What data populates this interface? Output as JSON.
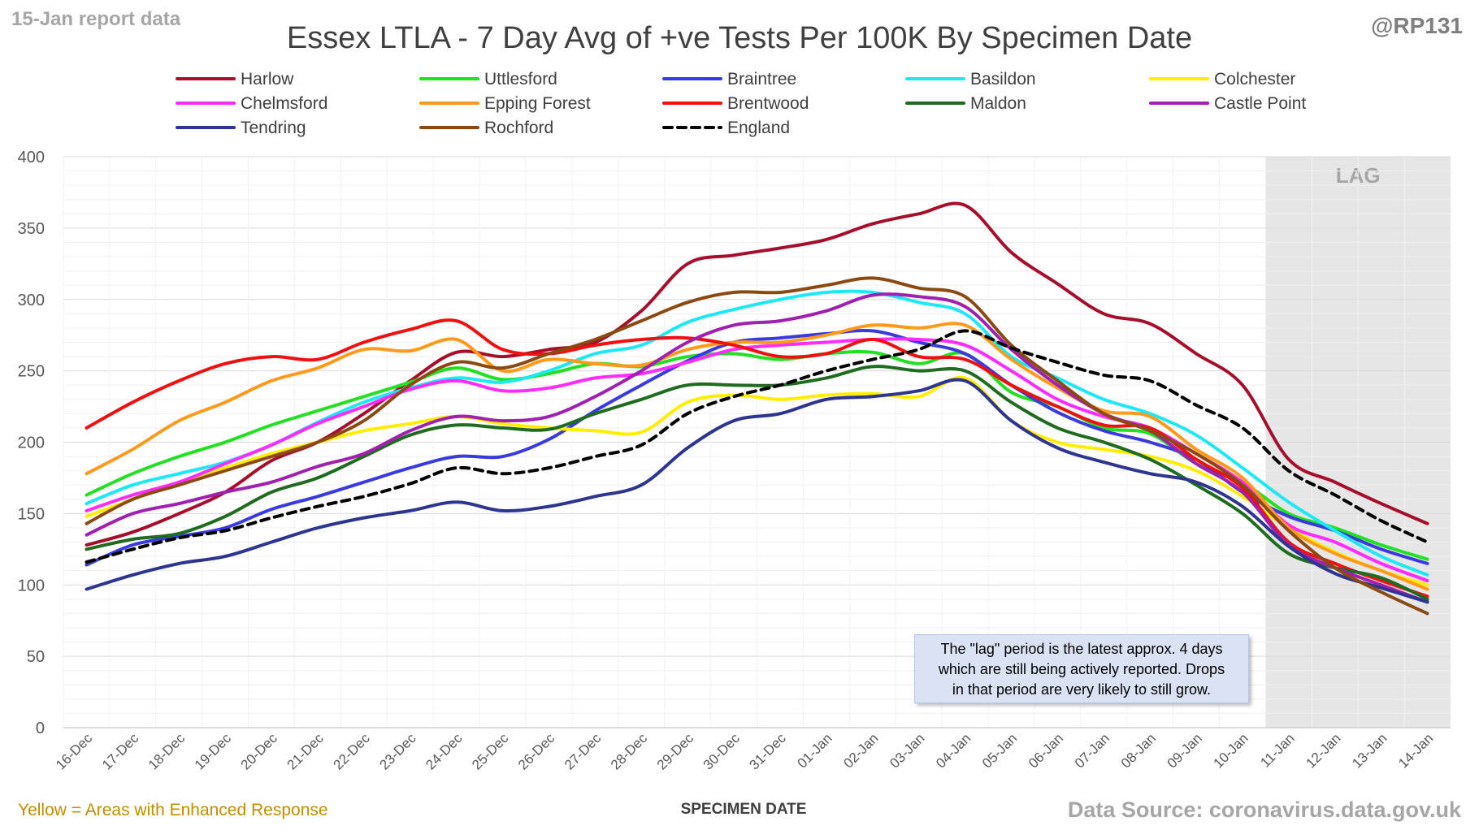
{
  "header": {
    "report_label": "15-Jan report data",
    "handle": "@RP131",
    "title": "Essex LTLA - 7 Day Avg of +ve Tests Per 100K By Specimen Date"
  },
  "footer": {
    "enhanced_note": "Yellow = Areas with Enhanced Response",
    "source": "Data Source: coronavirus.data.gov.uk"
  },
  "annotation": {
    "lines": [
      "The \"lag\" period is the latest approx. 4 days",
      "which are still being actively reported.  Drops",
      "in that period are very likely to still grow."
    ]
  },
  "chart_data": {
    "type": "line",
    "title": "Essex LTLA - 7 Day Avg of +ve Tests Per 100K By Specimen Date",
    "xlabel": "SPECIMEN DATE",
    "ylabel": "",
    "ylim": [
      0,
      400
    ],
    "yticks": [
      0,
      50,
      100,
      150,
      200,
      250,
      300,
      350,
      400
    ],
    "grid": true,
    "legend_position": "top",
    "lag_label": "LAG",
    "lag_start": "11-Jan",
    "lag_end": "14-Jan",
    "x": [
      "16-Dec",
      "17-Dec",
      "18-Dec",
      "19-Dec",
      "20-Dec",
      "21-Dec",
      "22-Dec",
      "23-Dec",
      "24-Dec",
      "25-Dec",
      "26-Dec",
      "27-Dec",
      "28-Dec",
      "29-Dec",
      "30-Dec",
      "31-Dec",
      "01-Jan",
      "02-Jan",
      "03-Jan",
      "04-Jan",
      "05-Jan",
      "06-Jan",
      "07-Jan",
      "08-Jan",
      "09-Jan",
      "10-Jan",
      "11-Jan",
      "12-Jan",
      "13-Jan",
      "14-Jan"
    ],
    "series": [
      {
        "name": "Harlow",
        "color": "#a50f2d",
        "dash": false,
        "values": [
          128,
          137,
          150,
          165,
          187,
          200,
          220,
          243,
          263,
          260,
          265,
          270,
          292,
          325,
          331,
          336,
          342,
          353,
          360,
          366,
          333,
          311,
          290,
          283,
          262,
          240,
          188,
          172,
          157,
          143
        ]
      },
      {
        "name": "Uttlesford",
        "color": "#22e022",
        "dash": false,
        "values": [
          163,
          178,
          190,
          200,
          212,
          222,
          232,
          242,
          252,
          244,
          248,
          255,
          253,
          260,
          262,
          258,
          262,
          263,
          255,
          262,
          235,
          225,
          210,
          206,
          185,
          172,
          150,
          140,
          128,
          118
        ]
      },
      {
        "name": "Braintree",
        "color": "#3a3ae0",
        "dash": false,
        "values": [
          114,
          128,
          134,
          140,
          153,
          162,
          172,
          182,
          190,
          190,
          202,
          222,
          240,
          257,
          270,
          273,
          276,
          278,
          270,
          262,
          240,
          221,
          208,
          200,
          188,
          165,
          148,
          138,
          125,
          115
        ]
      },
      {
        "name": "Basildon",
        "color": "#1de8f5",
        "dash": false,
        "values": [
          157,
          170,
          178,
          186,
          198,
          214,
          228,
          238,
          245,
          242,
          250,
          262,
          268,
          284,
          293,
          300,
          305,
          305,
          298,
          290,
          260,
          245,
          230,
          220,
          205,
          182,
          158,
          138,
          120,
          107
        ]
      },
      {
        "name": "Colchester",
        "color": "#ffee00",
        "dash": false,
        "values": [
          148,
          160,
          172,
          182,
          192,
          200,
          208,
          213,
          218,
          213,
          210,
          208,
          207,
          228,
          233,
          230,
          233,
          234,
          232,
          245,
          215,
          200,
          195,
          190,
          180,
          162,
          140,
          123,
          110,
          100
        ]
      },
      {
        "name": "Chelmsford",
        "color": "#ff2bff",
        "dash": false,
        "values": [
          152,
          163,
          172,
          185,
          198,
          213,
          225,
          237,
          243,
          236,
          238,
          245,
          248,
          256,
          265,
          268,
          270,
          272,
          272,
          268,
          250,
          230,
          218,
          210,
          192,
          172,
          142,
          130,
          115,
          103
        ]
      },
      {
        "name": "Epping Forest",
        "color": "#ff9a1a",
        "dash": false,
        "values": [
          178,
          195,
          215,
          228,
          243,
          252,
          265,
          264,
          272,
          250,
          258,
          255,
          254,
          265,
          270,
          270,
          275,
          282,
          280,
          282,
          258,
          238,
          222,
          218,
          195,
          175,
          140,
          122,
          110,
          97
        ]
      },
      {
        "name": "Brentwood",
        "color": "#f01010",
        "dash": false,
        "values": [
          210,
          228,
          243,
          255,
          260,
          258,
          270,
          279,
          285,
          265,
          262,
          268,
          272,
          273,
          268,
          260,
          262,
          272,
          260,
          258,
          240,
          225,
          212,
          210,
          188,
          168,
          130,
          115,
          103,
          92
        ]
      },
      {
        "name": "Maldon",
        "color": "#1f6b1f",
        "dash": false,
        "values": [
          125,
          132,
          136,
          148,
          165,
          175,
          190,
          205,
          212,
          210,
          209,
          220,
          230,
          240,
          240,
          240,
          245,
          253,
          250,
          250,
          228,
          210,
          200,
          188,
          170,
          150,
          122,
          112,
          105,
          90
        ]
      },
      {
        "name": "Castle Point",
        "color": "#a020b0",
        "dash": false,
        "values": [
          135,
          150,
          157,
          165,
          172,
          183,
          192,
          208,
          218,
          215,
          218,
          232,
          250,
          270,
          282,
          285,
          292,
          303,
          302,
          295,
          265,
          240,
          220,
          208,
          185,
          165,
          128,
          112,
          100,
          88
        ]
      },
      {
        "name": "Tendring",
        "color": "#2e3590",
        "dash": false,
        "values": [
          97,
          107,
          115,
          120,
          130,
          140,
          147,
          152,
          158,
          152,
          155,
          162,
          170,
          196,
          215,
          220,
          230,
          232,
          236,
          243,
          215,
          196,
          186,
          178,
          172,
          155,
          127,
          108,
          98,
          88
        ]
      },
      {
        "name": "Rochford",
        "color": "#8b4a12",
        "dash": false,
        "values": [
          143,
          160,
          170,
          180,
          190,
          200,
          215,
          240,
          256,
          252,
          262,
          272,
          285,
          298,
          305,
          305,
          310,
          315,
          308,
          302,
          268,
          243,
          220,
          208,
          192,
          170,
          138,
          112,
          95,
          80
        ]
      },
      {
        "name": "England",
        "color": "#000000",
        "dash": true,
        "values": [
          116,
          125,
          133,
          138,
          147,
          155,
          162,
          171,
          182,
          178,
          182,
          190,
          198,
          220,
          232,
          240,
          250,
          258,
          265,
          278,
          266,
          256,
          247,
          243,
          226,
          210,
          180,
          163,
          145,
          130
        ]
      }
    ]
  }
}
